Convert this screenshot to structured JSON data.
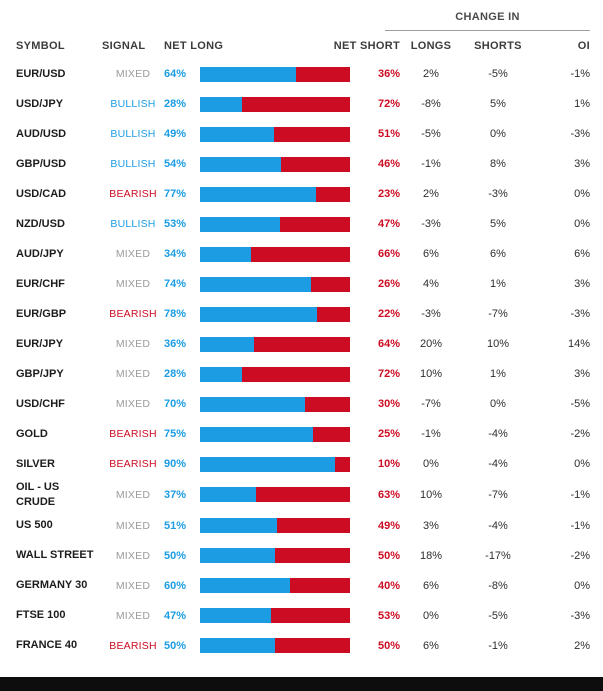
{
  "header": {
    "change_in_label": "CHANGE IN",
    "columns": {
      "symbol": "SYMBOL",
      "signal": "SIGNAL",
      "net_long": "NET LONG",
      "net_short": "NET SHORT",
      "longs": "LONGS",
      "shorts": "SHORTS",
      "oi": "OI"
    }
  },
  "colors": {
    "long_blue": "#1b9ce3",
    "short_red": "#cc0c22",
    "mixed_gray": "#9b9b9b"
  },
  "chart_data": {
    "type": "table",
    "title": "Client sentiment table with net long/short stacked bars",
    "columns": [
      "SYMBOL",
      "SIGNAL",
      "NET LONG",
      "NET SHORT",
      "CHANGE IN LONGS",
      "CHANGE IN SHORTS",
      "CHANGE IN OI"
    ],
    "rows": [
      {
        "symbol": "EUR/USD",
        "signal": "MIXED",
        "net_long": "64%",
        "long_pct": 64,
        "net_short": "36%",
        "longs": "2%",
        "shorts": "-5%",
        "oi": "-1%"
      },
      {
        "symbol": "USD/JPY",
        "signal": "BULLISH",
        "net_long": "28%",
        "long_pct": 28,
        "net_short": "72%",
        "longs": "-8%",
        "shorts": "5%",
        "oi": "1%"
      },
      {
        "symbol": "AUD/USD",
        "signal": "BULLISH",
        "net_long": "49%",
        "long_pct": 49,
        "net_short": "51%",
        "longs": "-5%",
        "shorts": "0%",
        "oi": "-3%"
      },
      {
        "symbol": "GBP/USD",
        "signal": "BULLISH",
        "net_long": "54%",
        "long_pct": 54,
        "net_short": "46%",
        "longs": "-1%",
        "shorts": "8%",
        "oi": "3%"
      },
      {
        "symbol": "USD/CAD",
        "signal": "BEARISH",
        "net_long": "77%",
        "long_pct": 77,
        "net_short": "23%",
        "longs": "2%",
        "shorts": "-3%",
        "oi": "0%"
      },
      {
        "symbol": "NZD/USD",
        "signal": "BULLISH",
        "net_long": "53%",
        "long_pct": 53,
        "net_short": "47%",
        "longs": "-3%",
        "shorts": "5%",
        "oi": "0%"
      },
      {
        "symbol": "AUD/JPY",
        "signal": "MIXED",
        "net_long": "34%",
        "long_pct": 34,
        "net_short": "66%",
        "longs": "6%",
        "shorts": "6%",
        "oi": "6%"
      },
      {
        "symbol": "EUR/CHF",
        "signal": "MIXED",
        "net_long": "74%",
        "long_pct": 74,
        "net_short": "26%",
        "longs": "4%",
        "shorts": "1%",
        "oi": "3%"
      },
      {
        "symbol": "EUR/GBP",
        "signal": "BEARISH",
        "net_long": "78%",
        "long_pct": 78,
        "net_short": "22%",
        "longs": "-3%",
        "shorts": "-7%",
        "oi": "-3%"
      },
      {
        "symbol": "EUR/JPY",
        "signal": "MIXED",
        "net_long": "36%",
        "long_pct": 36,
        "net_short": "64%",
        "longs": "20%",
        "shorts": "10%",
        "oi": "14%"
      },
      {
        "symbol": "GBP/JPY",
        "signal": "MIXED",
        "net_long": "28%",
        "long_pct": 28,
        "net_short": "72%",
        "longs": "10%",
        "shorts": "1%",
        "oi": "3%"
      },
      {
        "symbol": "USD/CHF",
        "signal": "MIXED",
        "net_long": "70%",
        "long_pct": 70,
        "net_short": "30%",
        "longs": "-7%",
        "shorts": "0%",
        "oi": "-5%"
      },
      {
        "symbol": "GOLD",
        "signal": "BEARISH",
        "net_long": "75%",
        "long_pct": 75,
        "net_short": "25%",
        "longs": "-1%",
        "shorts": "-4%",
        "oi": "-2%"
      },
      {
        "symbol": "SILVER",
        "signal": "BEARISH",
        "net_long": "90%",
        "long_pct": 90,
        "net_short": "10%",
        "longs": "0%",
        "shorts": "-4%",
        "oi": "0%"
      },
      {
        "symbol": "OIL - US CRUDE",
        "signal": "MIXED",
        "net_long": "37%",
        "long_pct": 37,
        "net_short": "63%",
        "longs": "10%",
        "shorts": "-7%",
        "oi": "-1%"
      },
      {
        "symbol": "US 500",
        "signal": "MIXED",
        "net_long": "51%",
        "long_pct": 51,
        "net_short": "49%",
        "longs": "3%",
        "shorts": "-4%",
        "oi": "-1%"
      },
      {
        "symbol": "WALL STREET",
        "signal": "MIXED",
        "net_long": "50%",
        "long_pct": 50,
        "net_short": "50%",
        "longs": "18%",
        "shorts": "-17%",
        "oi": "-2%"
      },
      {
        "symbol": "GERMANY 30",
        "signal": "MIXED",
        "net_long": "60%",
        "long_pct": 60,
        "net_short": "40%",
        "longs": "6%",
        "shorts": "-8%",
        "oi": "0%"
      },
      {
        "symbol": "FTSE 100",
        "signal": "MIXED",
        "net_long": "47%",
        "long_pct": 47,
        "net_short": "53%",
        "longs": "0%",
        "shorts": "-5%",
        "oi": "-3%"
      },
      {
        "symbol": "FRANCE 40",
        "signal": "BEARISH",
        "net_long": "50%",
        "long_pct": 50,
        "net_short": "50%",
        "longs": "6%",
        "shorts": "-1%",
        "oi": "2%"
      }
    ]
  }
}
